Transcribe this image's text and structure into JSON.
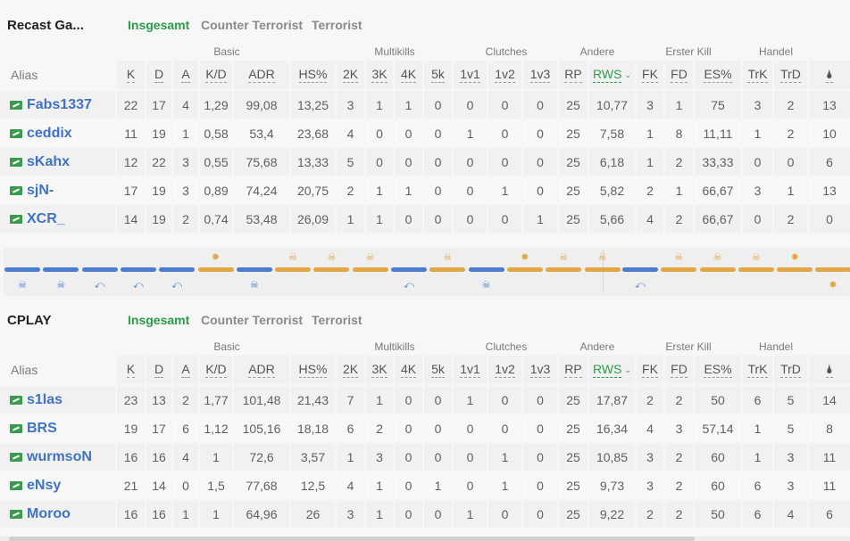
{
  "tabs": [
    "Insgesamt",
    "Counter Terrorist",
    "Terrorist"
  ],
  "groups": [
    "Basic",
    "Multikills",
    "Clutches",
    "Andere",
    "Erster Kill",
    "Handel"
  ],
  "alias_label": "Alias",
  "columns": [
    "K",
    "D",
    "A",
    "K/D",
    "ADR",
    "HS%",
    "2K",
    "3K",
    "4K",
    "5k",
    "1v1",
    "1v2",
    "1v3",
    "RP",
    "RWS",
    "FK",
    "FD",
    "ES%",
    "TrK",
    "TrD",
    "🌢"
  ],
  "sort_column": "RWS",
  "teams": [
    {
      "name": "Recast Ga...",
      "active_tab": "Insgesamt",
      "players": [
        {
          "name": "Fabs1337",
          "stats": [
            "22",
            "17",
            "4",
            "1,29",
            "99,08",
            "13,25",
            "3",
            "1",
            "1",
            "0",
            "0",
            "0",
            "0",
            "25",
            "10,77",
            "3",
            "1",
            "75",
            "3",
            "2",
            "13"
          ]
        },
        {
          "name": "ceddix",
          "stats": [
            "11",
            "19",
            "1",
            "0,58",
            "53,4",
            "23,68",
            "4",
            "0",
            "0",
            "0",
            "1",
            "0",
            "0",
            "25",
            "7,58",
            "1",
            "8",
            "11,11",
            "1",
            "2",
            "10"
          ]
        },
        {
          "name": "sKahx",
          "stats": [
            "12",
            "22",
            "3",
            "0,55",
            "75,68",
            "13,33",
            "5",
            "0",
            "0",
            "0",
            "0",
            "0",
            "0",
            "25",
            "6,18",
            "1",
            "2",
            "33,33",
            "0",
            "0",
            "6"
          ]
        },
        {
          "name": "sjN-",
          "stats": [
            "17",
            "19",
            "3",
            "0,89",
            "74,24",
            "20,75",
            "2",
            "1",
            "1",
            "0",
            "0",
            "1",
            "0",
            "25",
            "5,82",
            "2",
            "1",
            "66,67",
            "3",
            "1",
            "13"
          ]
        },
        {
          "name": "XCR_",
          "stats": [
            "14",
            "19",
            "2",
            "0,74",
            "53,48",
            "26,09",
            "1",
            "1",
            "0",
            "0",
            "0",
            "0",
            "1",
            "25",
            "5,66",
            "4",
            "2",
            "66,67",
            "0",
            "2",
            "0"
          ]
        }
      ]
    },
    {
      "name": "CPLAY",
      "active_tab": "Insgesamt",
      "players": [
        {
          "name": "s1las",
          "stats": [
            "23",
            "13",
            "2",
            "1,77",
            "101,48",
            "21,43",
            "7",
            "1",
            "0",
            "0",
            "1",
            "0",
            "0",
            "25",
            "17,87",
            "2",
            "2",
            "50",
            "6",
            "5",
            "14"
          ]
        },
        {
          "name": "BRS",
          "stats": [
            "19",
            "17",
            "6",
            "1,12",
            "105,16",
            "18,18",
            "6",
            "2",
            "0",
            "0",
            "0",
            "0",
            "0",
            "25",
            "16,34",
            "4",
            "3",
            "57,14",
            "1",
            "5",
            "8"
          ]
        },
        {
          "name": "wurmsoN",
          "stats": [
            "16",
            "16",
            "4",
            "1",
            "72,6",
            "3,57",
            "1",
            "3",
            "0",
            "0",
            "0",
            "1",
            "0",
            "25",
            "10,85",
            "3",
            "2",
            "60",
            "1",
            "3",
            "11"
          ]
        },
        {
          "name": "eNsy",
          "stats": [
            "21",
            "14",
            "0",
            "1,5",
            "77,68",
            "12,5",
            "4",
            "1",
            "0",
            "1",
            "0",
            "1",
            "0",
            "25",
            "9,73",
            "3",
            "2",
            "60",
            "6",
            "3",
            "11"
          ]
        },
        {
          "name": "Moroo",
          "stats": [
            "16",
            "16",
            "1",
            "1",
            "64,96",
            "26",
            "3",
            "1",
            "0",
            "0",
            "1",
            "0",
            "0",
            "25",
            "9,22",
            "2",
            "2",
            "50",
            "6",
            "4",
            "6"
          ]
        }
      ]
    }
  ],
  "timeline": {
    "rounds": [
      {
        "side": "ct",
        "event": "skull-icon"
      },
      {
        "side": "ct",
        "event": "skull-icon"
      },
      {
        "side": "ct",
        "event": "defuse-icon"
      },
      {
        "side": "ct",
        "event": "defuse-icon"
      },
      {
        "side": "ct",
        "event": "defuse-icon"
      },
      {
        "side": "t",
        "event": "explosion-icon"
      },
      {
        "side": "ct",
        "event": "skull-icon"
      },
      {
        "side": "t",
        "event": "skull-icon"
      },
      {
        "side": "t",
        "event": "skull-icon"
      },
      {
        "side": "t",
        "event": "skull-icon"
      },
      {
        "side": "ct",
        "event": "defuse-icon"
      },
      {
        "side": "t",
        "event": "skull-icon"
      },
      {
        "side": "ct",
        "event": "skull-icon"
      },
      {
        "side": "t",
        "event": "explosion-icon"
      },
      {
        "side": "t",
        "event": "skull-icon"
      },
      {
        "side": "t",
        "event": "skull-icon"
      },
      {
        "side": "ct",
        "event": "defuse-icon"
      },
      {
        "side": "t",
        "event": "skull-icon"
      },
      {
        "side": "t",
        "event": "skull-icon"
      },
      {
        "side": "t",
        "event": "skull-icon"
      },
      {
        "side": "t",
        "event": "explosion-icon"
      }
    ],
    "colors": {
      "ct": "#4a7cd2",
      "t": "#e2a744"
    }
  },
  "colors": {
    "accent": "#2a9d4b",
    "link": "#3f72c7"
  }
}
